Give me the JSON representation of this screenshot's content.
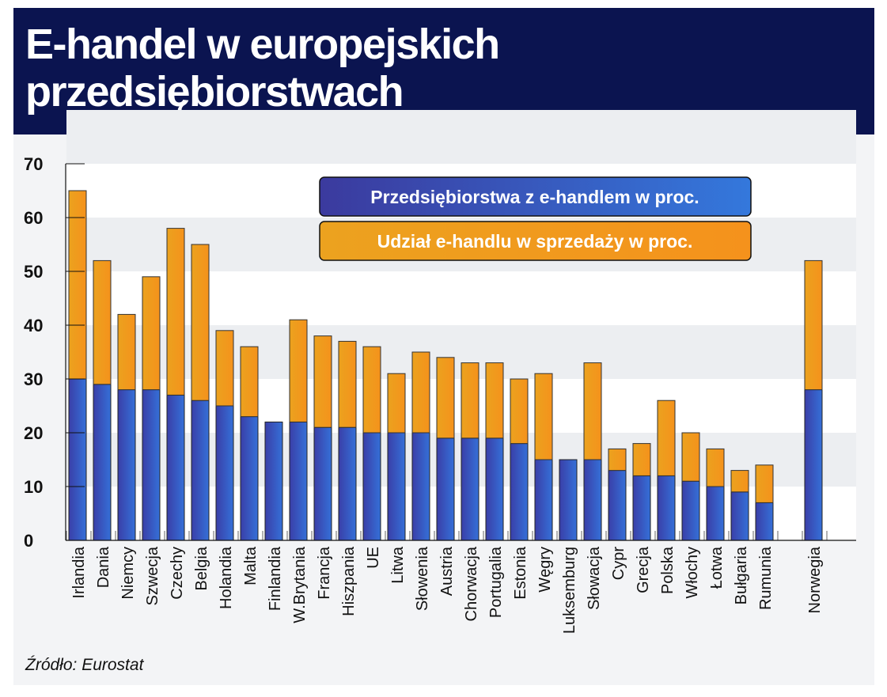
{
  "title": "E-handel w europejskich przedsiębiorstwach",
  "source": "Źródło: Eurostat",
  "chart_data": {
    "type": "bar",
    "stacked": true,
    "categories": [
      "Irlandia",
      "Dania",
      "Niemcy",
      "Szwecja",
      "Czechy",
      "Belgia",
      "Holandia",
      "Malta",
      "Finlandia",
      "W.Brytania",
      "Francja",
      "Hiszpania",
      "UE",
      "Litwa",
      "Słowenia",
      "Austria",
      "Chorwacja",
      "Portugalia",
      "Estonia",
      "Węgry",
      "Luksemburg",
      "Słowacja",
      "Cypr",
      "Grecja",
      "Polska",
      "Włochy",
      "Łotwa",
      "Bułgaria",
      "Rumunia",
      "Norwegia"
    ],
    "series": [
      {
        "name": "Przedsiębiorstwa z e-handlem w proc.",
        "color": "#3a4fc0",
        "values": [
          30,
          29,
          28,
          28,
          27,
          26,
          25,
          23,
          22,
          22,
          21,
          21,
          20,
          20,
          20,
          19,
          19,
          19,
          18,
          15,
          15,
          15,
          13,
          12,
          12,
          11,
          10,
          9,
          7,
          28
        ]
      },
      {
        "name": "Udział e-handlu w sprzedaży w proc.",
        "color": "#f29a1f",
        "values": [
          35,
          23,
          14,
          21,
          31,
          29,
          14,
          13,
          0,
          19,
          17,
          16,
          16,
          11,
          15,
          15,
          14,
          14,
          12,
          16,
          0,
          18,
          4,
          6,
          14,
          9,
          7,
          4,
          7,
          24
        ]
      }
    ],
    "yticks": [
      "0",
      "10",
      "20",
      "30",
      "40",
      "50",
      "60",
      "70"
    ],
    "ylim": [
      0,
      70
    ],
    "legend": "top-center",
    "grid": "horizontal bands"
  }
}
